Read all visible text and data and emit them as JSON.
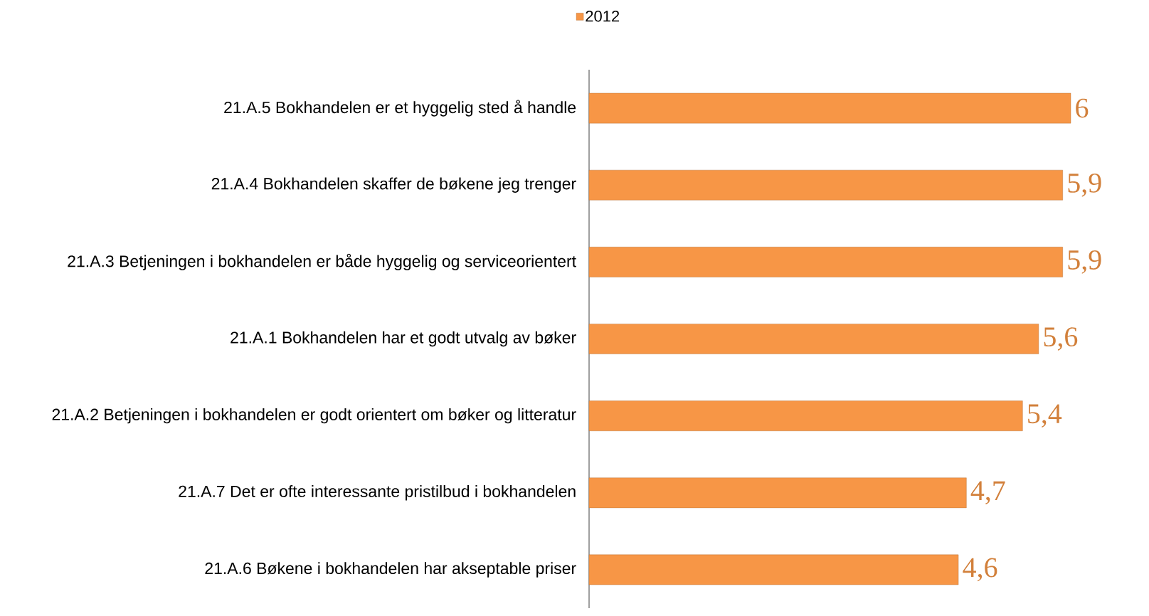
{
  "chart_data": {
    "type": "bar",
    "orientation": "horizontal",
    "categories": [
      "21.A.5 Bokhandelen er et hyggelig sted å handle",
      "21.A.4 Bokhandelen skaffer de bøkene jeg trenger",
      "21.A.3 Betjeningen i bokhandelen er både hyggelig og serviceorientert",
      "21.A.1 Bokhandelen har et godt utvalg av bøker",
      "21.A.2 Betjeningen i bokhandelen er godt orientert om bøker og litteratur",
      "21.A.7 Det er ofte interessante pristilbud i bokhandelen",
      "21.A.6 Bøkene i bokhandelen har akseptable priser"
    ],
    "series": [
      {
        "name": "2012",
        "color": "#f79646",
        "values": [
          6,
          5.9,
          5.9,
          5.6,
          5.4,
          4.7,
          4.6
        ],
        "value_labels": [
          "6",
          "5,9",
          "5,9",
          "5,6",
          "5,4",
          "4,7",
          "4,6"
        ]
      }
    ],
    "xlim": [
      0,
      6
    ],
    "legend": "top"
  }
}
